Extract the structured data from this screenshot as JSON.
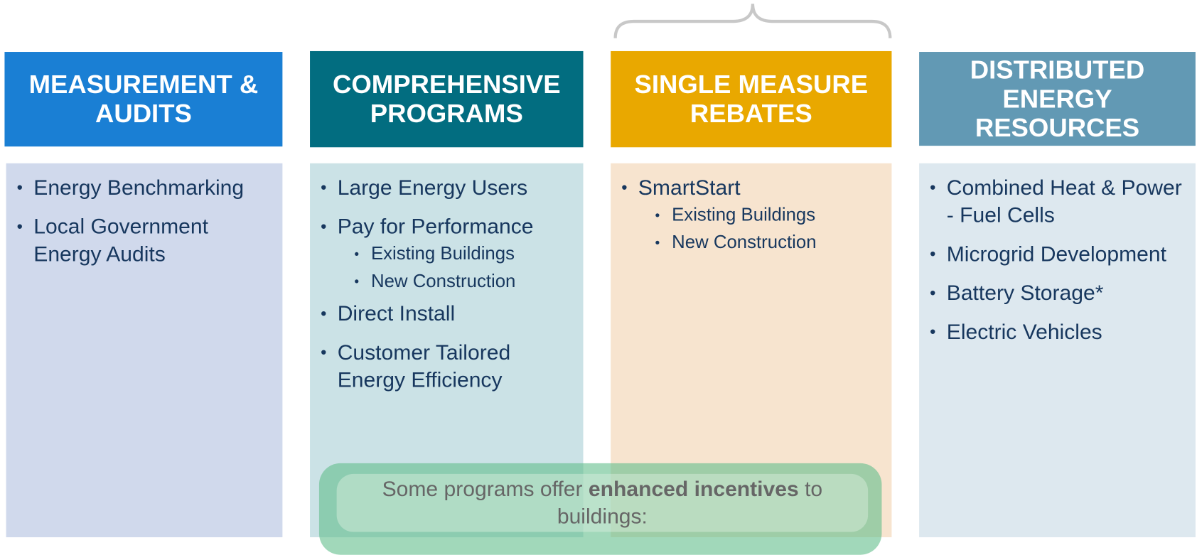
{
  "columns": [
    {
      "title": "MEASUREMENT & AUDITS",
      "items": [
        {
          "text": "Energy Benchmarking",
          "sub": []
        },
        {
          "text": "Local Government Energy Audits",
          "sub": []
        }
      ]
    },
    {
      "title": "COMPREHENSIVE PROGRAMS",
      "items": [
        {
          "text": "Large Energy Users",
          "sub": []
        },
        {
          "text": "Pay for Performance",
          "sub": [
            "Existing Buildings",
            "New Construction"
          ]
        },
        {
          "text": "Direct Install",
          "sub": []
        },
        {
          "text": "Customer Tailored Energy Efficiency",
          "sub": []
        }
      ]
    },
    {
      "title": "SINGLE MEASURE REBATES",
      "items": [
        {
          "text": "SmartStart",
          "sub": [
            "Existing Buildings",
            "New Construction"
          ]
        }
      ]
    },
    {
      "title": "DISTRIBUTED ENERGY RESOURCES",
      "items": [
        {
          "text": "Combined Heat & Power - Fuel Cells",
          "sub": []
        },
        {
          "text": "Microgrid Development",
          "sub": []
        },
        {
          "text": "Battery Storage*",
          "sub": []
        },
        {
          "text": "Electric Vehicles",
          "sub": []
        }
      ]
    }
  ],
  "callout": {
    "text_before": "Some programs offer",
    "bold": "enhanced incentives",
    "text_after": "to buildings:"
  }
}
